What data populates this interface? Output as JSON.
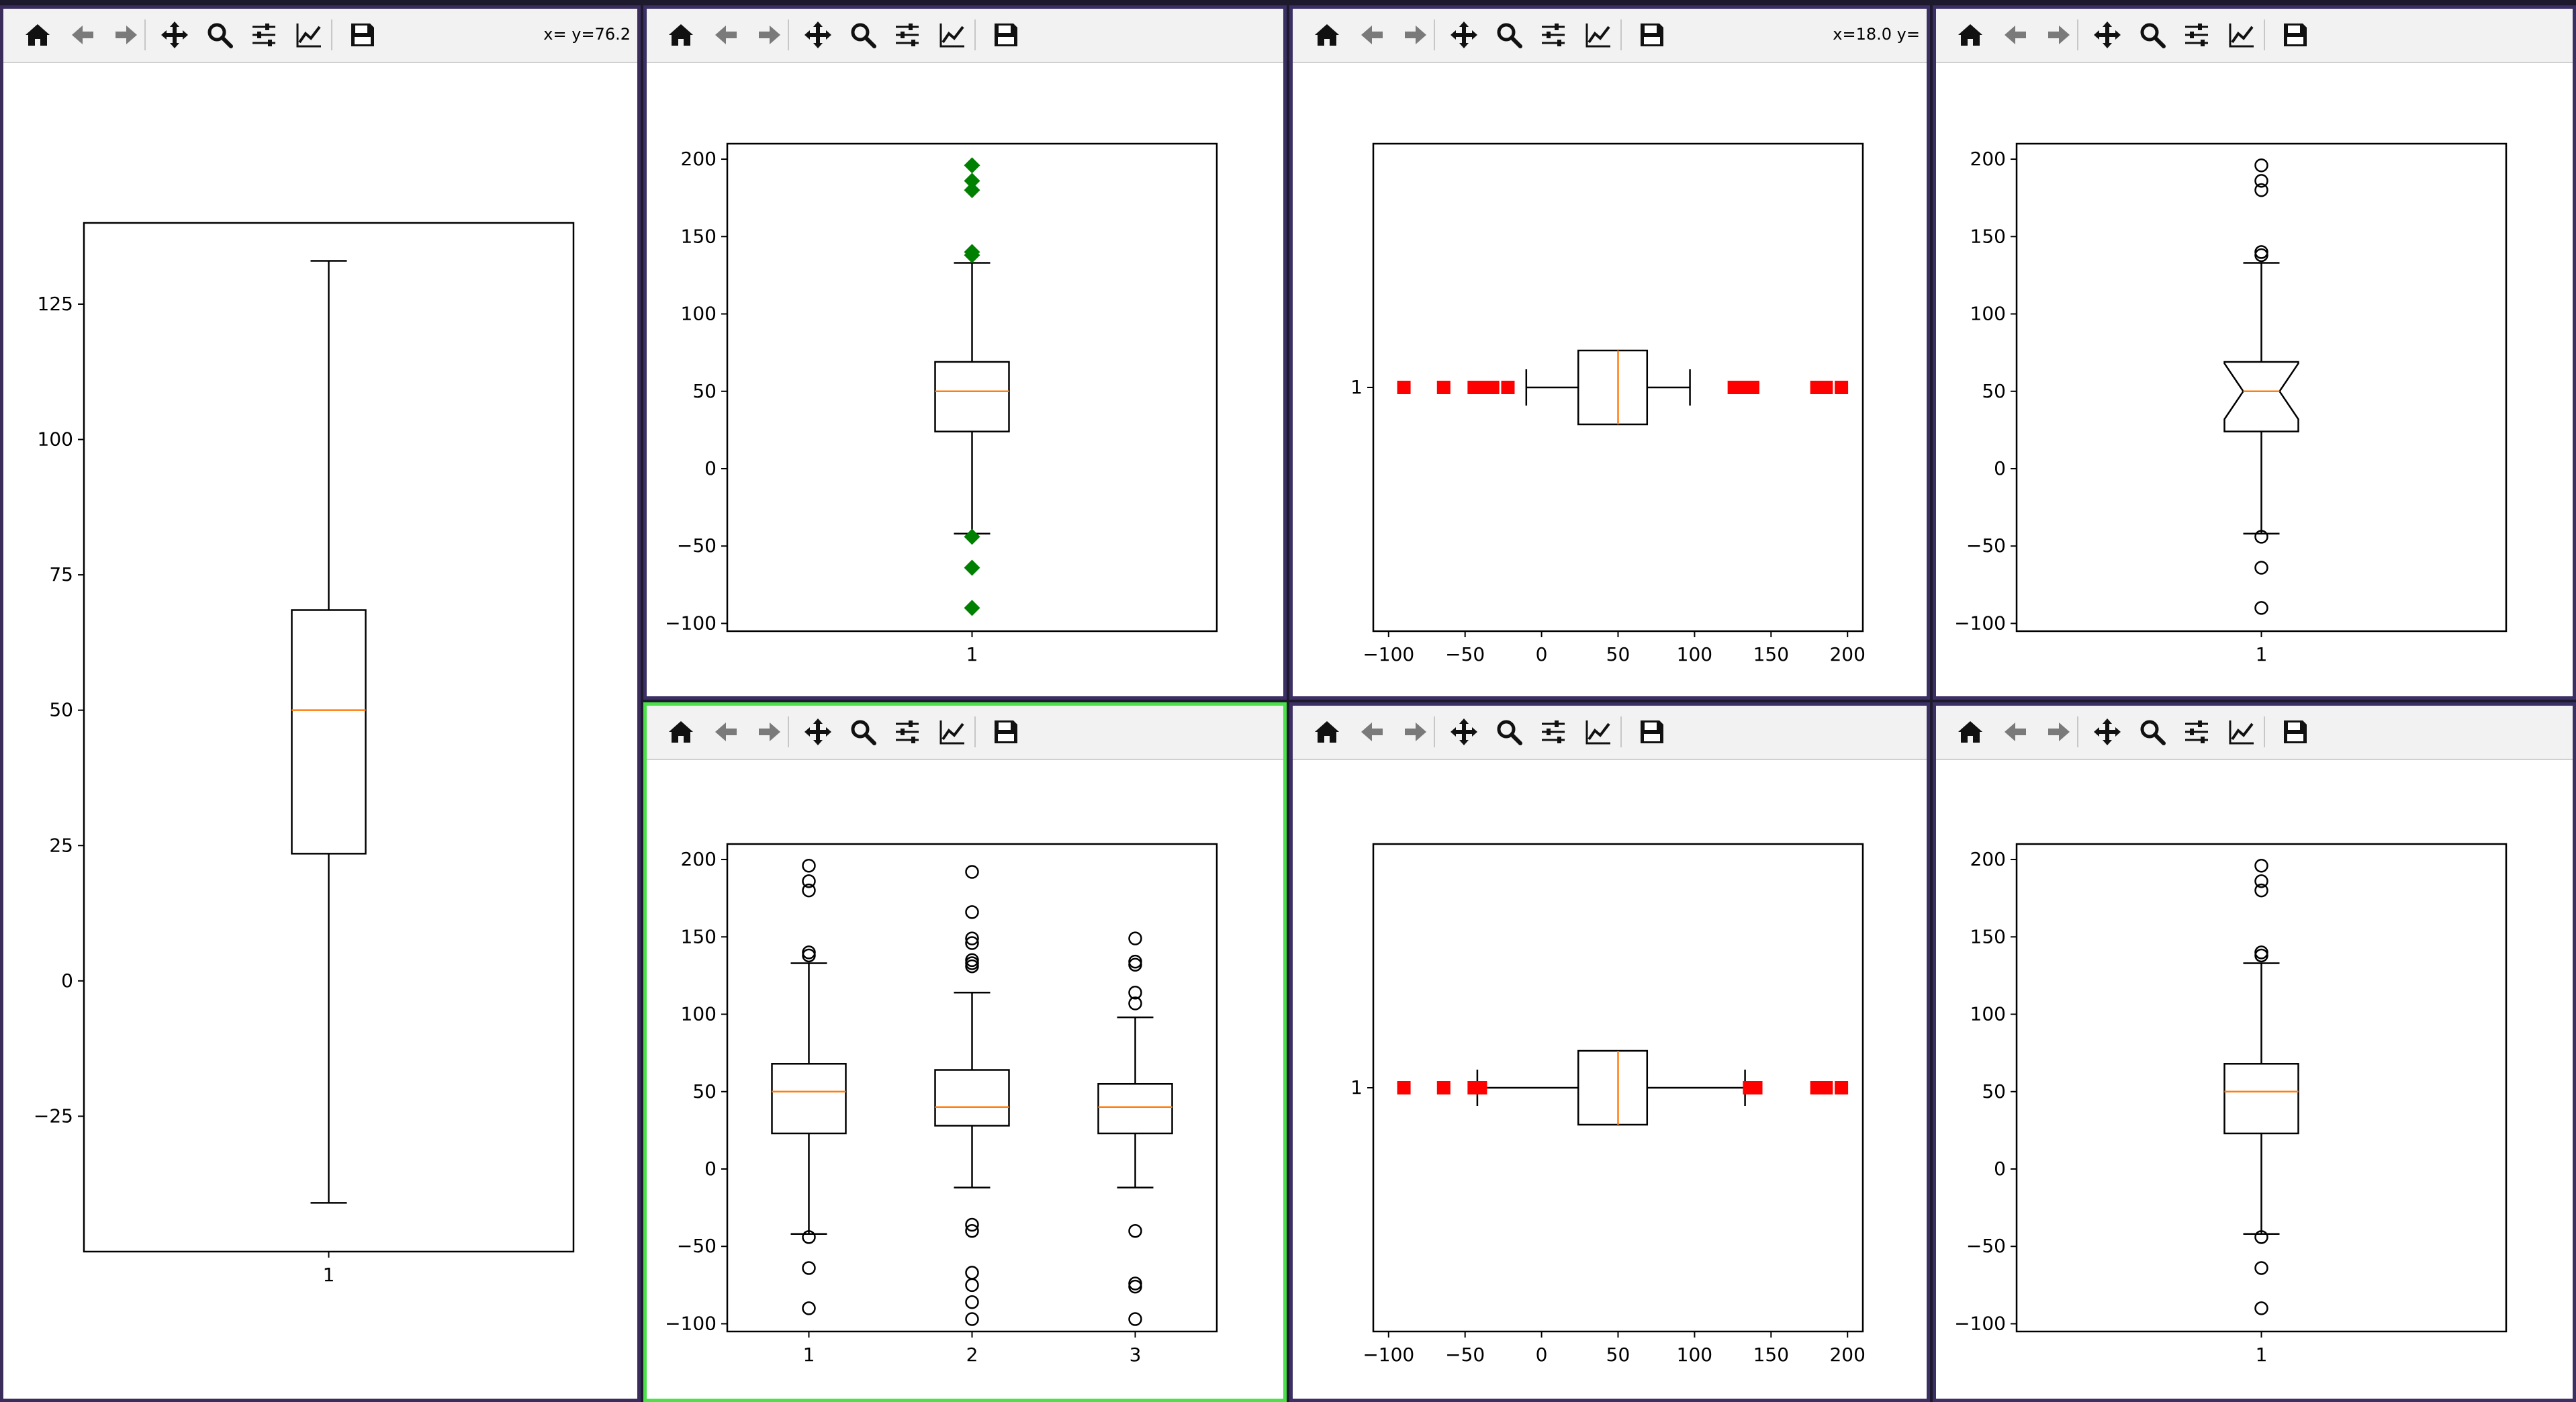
{
  "windows": [
    {
      "id": "w0",
      "coords": "x= y=76.2",
      "active": false
    },
    {
      "id": "w1",
      "coords": "",
      "active": false
    },
    {
      "id": "w2",
      "coords": "x=18.0 y=",
      "active": false
    },
    {
      "id": "w3",
      "coords": "",
      "active": false
    },
    {
      "id": "w4",
      "coords": "",
      "active": true
    },
    {
      "id": "w5",
      "coords": "",
      "active": false
    },
    {
      "id": "w6",
      "coords": "",
      "active": false
    }
  ],
  "toolbar": {
    "buttons": [
      "home-icon",
      "back-arrow-icon",
      "forward-arrow-icon",
      "pan-move-icon",
      "zoom-magnifier-icon",
      "subplots-sliders-icon",
      "edit-curves-icon",
      "save-floppy-icon"
    ]
  },
  "colors": {
    "median": "#ff7f0e",
    "green_flier": "#008000",
    "red_flier": "#ff0000",
    "active_border": "#4ce04a"
  },
  "chart_data": [
    {
      "window": "w0",
      "type": "box",
      "orientation": "vertical",
      "title": "",
      "xlabel": "",
      "ylabel": "",
      "categories": [
        "1"
      ],
      "ylim": [
        -50,
        140
      ],
      "yticks": [
        -25,
        0,
        25,
        50,
        75,
        100,
        125
      ],
      "boxes": [
        {
          "min": -41,
          "q1": 23.5,
          "median": 50,
          "q3": 68.5,
          "max": 133,
          "fliers": []
        }
      ],
      "flier_style": "none",
      "notch": false
    },
    {
      "window": "w1",
      "type": "box",
      "orientation": "vertical",
      "title": "",
      "xlabel": "",
      "ylabel": "",
      "categories": [
        "1"
      ],
      "ylim": [
        -105,
        210
      ],
      "yticks": [
        -100,
        -50,
        0,
        50,
        100,
        150,
        200
      ],
      "boxes": [
        {
          "min": -42,
          "q1": 24,
          "median": 50,
          "q3": 69,
          "max": 133,
          "fliers": [
            196,
            186,
            180,
            140,
            138,
            -44,
            -64,
            -90
          ]
        }
      ],
      "flier_style": "green-diamond",
      "notch": false
    },
    {
      "window": "w2",
      "type": "box",
      "orientation": "horizontal",
      "title": "",
      "xlabel": "",
      "ylabel": "",
      "categories": [
        "1"
      ],
      "xlim": [
        -110,
        210
      ],
      "xticks": [
        "−100",
        "−50",
        "0",
        "50",
        "100",
        "150",
        "200"
      ],
      "xtick_values": [
        -100,
        -50,
        0,
        50,
        100,
        150,
        200
      ],
      "boxes": [
        {
          "min": -10,
          "q1": 24,
          "median": 50,
          "q3": 69,
          "max": 97,
          "fliers": [
            -90,
            -64,
            -44,
            -40,
            -36,
            -32,
            -22,
            126,
            128,
            130,
            132,
            134,
            136,
            138,
            180,
            184,
            186,
            196
          ]
        }
      ],
      "flier_style": "red-square",
      "notch": false
    },
    {
      "window": "w3",
      "type": "box",
      "orientation": "vertical",
      "title": "",
      "xlabel": "",
      "ylabel": "",
      "categories": [
        "1"
      ],
      "ylim": [
        -105,
        210
      ],
      "yticks": [
        -100,
        -50,
        0,
        50,
        100,
        150,
        200
      ],
      "boxes": [
        {
          "min": -42,
          "q1": 24,
          "median": 50,
          "q3": 69,
          "max": 133,
          "fliers": [
            196,
            186,
            180,
            140,
            138,
            -44,
            -64,
            -90
          ]
        }
      ],
      "flier_style": "circle",
      "notch": true
    },
    {
      "window": "w4",
      "type": "box",
      "orientation": "vertical",
      "title": "",
      "xlabel": "",
      "ylabel": "",
      "categories": [
        "1",
        "2",
        "3"
      ],
      "ylim": [
        -105,
        210
      ],
      "yticks": [
        -100,
        -50,
        0,
        50,
        100,
        150,
        200
      ],
      "boxes": [
        {
          "min": -42,
          "q1": 23,
          "median": 50,
          "q3": 68,
          "max": 133,
          "fliers": [
            196,
            186,
            180,
            140,
            138,
            -44,
            -64,
            -90
          ]
        },
        {
          "min": -12,
          "q1": 28,
          "median": 40,
          "q3": 64,
          "max": 114,
          "fliers": [
            192,
            166,
            149,
            146,
            135,
            133,
            131,
            -36,
            -40,
            -67,
            -75,
            -86,
            -97
          ]
        },
        {
          "min": -12,
          "q1": 23,
          "median": 40,
          "q3": 55,
          "max": 98,
          "fliers": [
            149,
            134,
            132,
            114,
            107,
            -40,
            -74,
            -76,
            -97
          ]
        }
      ],
      "flier_style": "circle",
      "notch": false
    },
    {
      "window": "w5",
      "type": "box",
      "orientation": "horizontal",
      "title": "",
      "xlabel": "",
      "ylabel": "",
      "categories": [
        "1"
      ],
      "xlim": [
        -110,
        210
      ],
      "xticks": [
        "−100",
        "−50",
        "0",
        "50",
        "100",
        "150",
        "200"
      ],
      "xtick_values": [
        -100,
        -50,
        0,
        50,
        100,
        150,
        200
      ],
      "boxes": [
        {
          "min": -42,
          "q1": 24,
          "median": 50,
          "q3": 69,
          "max": 133,
          "fliers": [
            -90,
            -64,
            -44,
            -40,
            136,
            138,
            140,
            180,
            184,
            186,
            196
          ]
        }
      ],
      "flier_style": "red-square",
      "notch": false
    },
    {
      "window": "w6",
      "type": "box",
      "orientation": "vertical",
      "title": "",
      "xlabel": "",
      "ylabel": "",
      "categories": [
        "1"
      ],
      "ylim": [
        -105,
        210
      ],
      "yticks": [
        -100,
        -50,
        0,
        50,
        100,
        150,
        200
      ],
      "boxes": [
        {
          "min": -42,
          "q1": 23,
          "median": 50,
          "q3": 68,
          "max": 133,
          "fliers": [
            196,
            186,
            180,
            140,
            138,
            -44,
            -64,
            -90
          ]
        }
      ],
      "flier_style": "circle",
      "notch": false
    }
  ]
}
